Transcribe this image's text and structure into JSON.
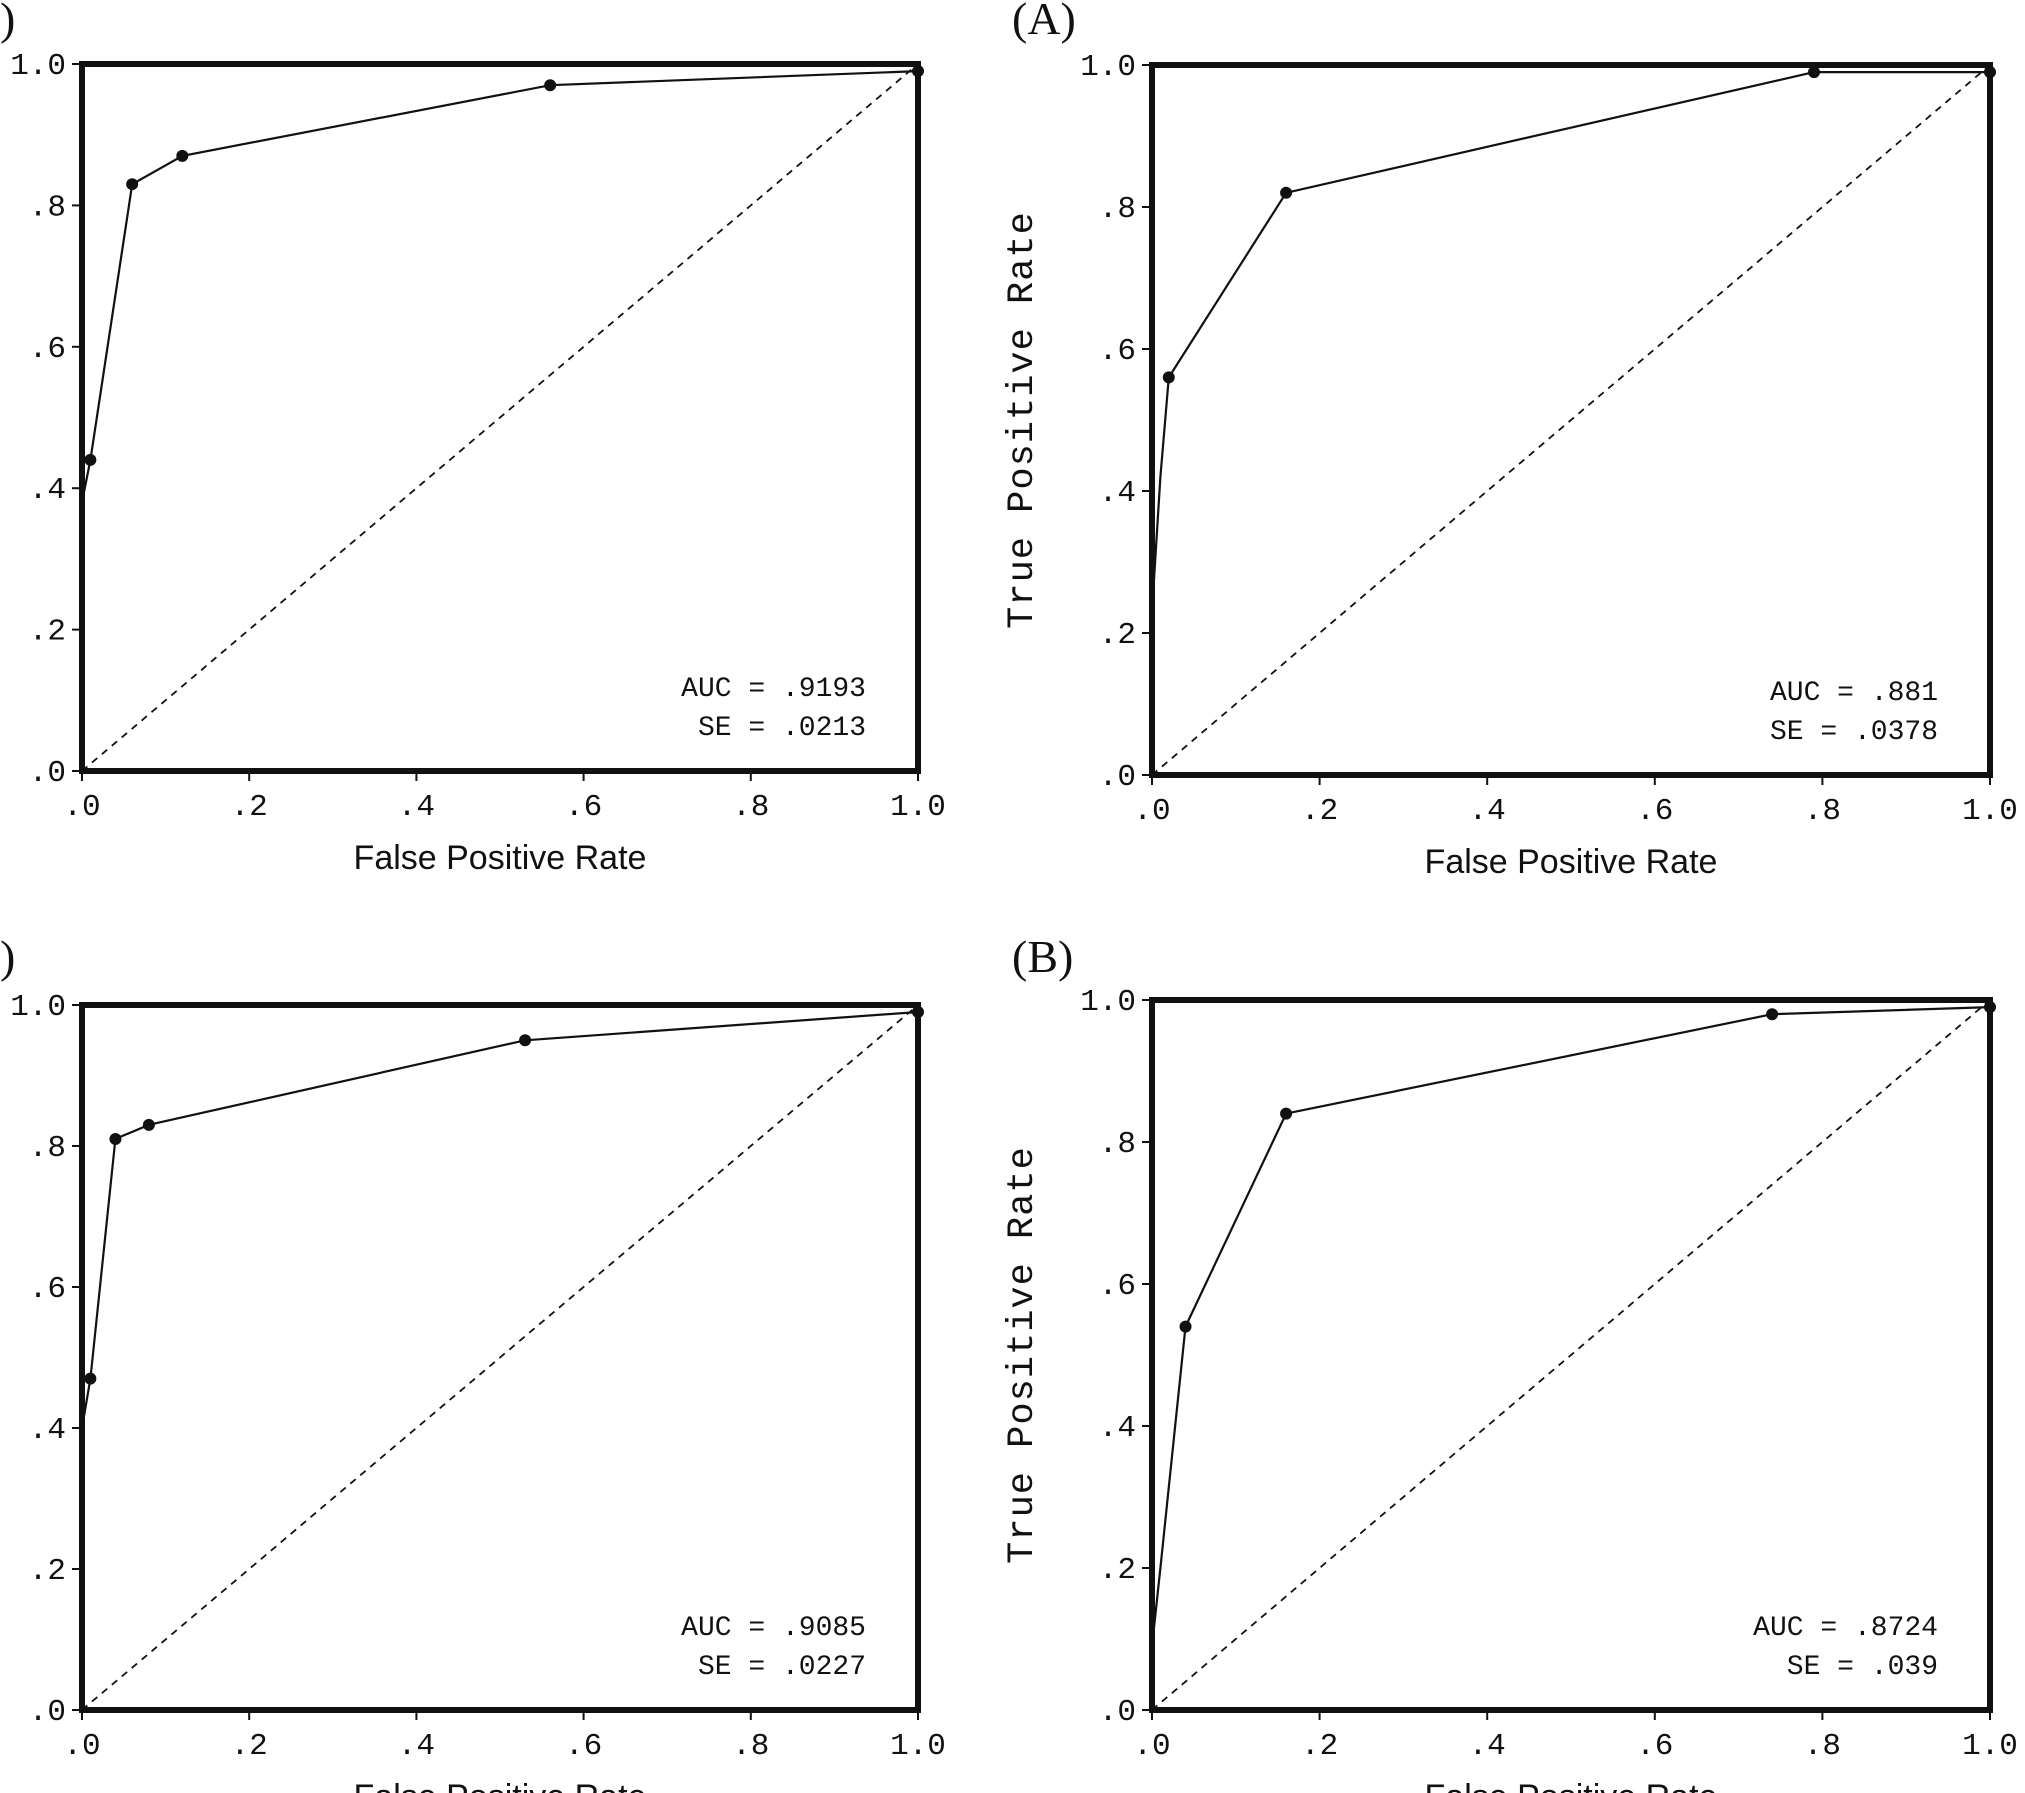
{
  "chart_data": [
    {
      "type": "line",
      "panel_label": ")",
      "xlabel": "False Positive Rate",
      "ylabel": "",
      "xlim": [
        0,
        1
      ],
      "ylim": [
        0,
        1
      ],
      "x_ticks": [
        ".0",
        ".2",
        ".4",
        ".6",
        ".8",
        "1.0"
      ],
      "y_ticks": [
        ".0",
        ".2",
        ".4",
        ".6",
        ".8",
        "1.0"
      ],
      "grid": false,
      "reference_line": "diagonal dashed",
      "series": [
        {
          "x": [
            0,
            0,
            0.01,
            0.06,
            0.12,
            0.56,
            1.0
          ],
          "y": [
            0.22,
            0.38,
            0.44,
            0.83,
            0.87,
            0.97,
            0.99
          ]
        }
      ],
      "markers": {
        "x": [
          0.01,
          0.06,
          0.12,
          0.56,
          1.0
        ],
        "y": [
          0.44,
          0.83,
          0.87,
          0.97,
          0.99
        ]
      },
      "annotation": {
        "auc": "AUC = .9193",
        "se": "SE = .0213"
      }
    },
    {
      "type": "line",
      "panel_label": "(A)",
      "xlabel": "False Positive Rate",
      "ylabel": "True Positive Rate",
      "xlim": [
        0,
        1
      ],
      "ylim": [
        0,
        1
      ],
      "x_ticks": [
        ".0",
        ".2",
        ".4",
        ".6",
        ".8",
        "1.0"
      ],
      "y_ticks": [
        ".0",
        ".2",
        ".4",
        ".6",
        ".8",
        "1.0"
      ],
      "grid": false,
      "reference_line": "diagonal dashed",
      "series": [
        {
          "x": [
            0,
            0,
            0.01,
            0.02,
            0.16,
            0.79,
            1.0
          ],
          "y": [
            0.14,
            0.23,
            0.42,
            0.56,
            0.82,
            0.99,
            0.99
          ]
        }
      ],
      "markers": {
        "x": [
          0.02,
          0.16,
          0.79,
          1.0
        ],
        "y": [
          0.56,
          0.82,
          0.99,
          0.99
        ]
      },
      "annotation": {
        "auc": "AUC = .881",
        "se": "SE = .0378"
      }
    },
    {
      "type": "line",
      "panel_label": ")",
      "xlabel": "False Positive Rate",
      "ylabel": "",
      "xlim": [
        0,
        1
      ],
      "ylim": [
        0,
        1
      ],
      "x_ticks": [
        ".0",
        ".2",
        ".4",
        ".6",
        ".8",
        "1.0"
      ],
      "y_ticks": [
        ".0",
        ".2",
        ".4",
        ".6",
        ".8",
        "1.0"
      ],
      "grid": false,
      "reference_line": "diagonal dashed",
      "series": [
        {
          "x": [
            0,
            0,
            0.01,
            0.04,
            0.08,
            0.53,
            1.0
          ],
          "y": [
            0.24,
            0.4,
            0.47,
            0.81,
            0.83,
            0.95,
            0.99
          ]
        }
      ],
      "markers": {
        "x": [
          0.01,
          0.04,
          0.08,
          0.53,
          1.0
        ],
        "y": [
          0.47,
          0.81,
          0.83,
          0.95,
          0.99
        ]
      },
      "annotation": {
        "auc": "AUC = .9085",
        "se": "SE = .0227"
      }
    },
    {
      "type": "line",
      "panel_label": "(B)",
      "xlabel": "False Positive Rate",
      "ylabel": "True Positive Rate",
      "xlim": [
        0,
        1
      ],
      "ylim": [
        0,
        1
      ],
      "x_ticks": [
        ".0",
        ".2",
        ".4",
        ".6",
        ".8",
        "1.0"
      ],
      "y_ticks": [
        ".0",
        ".2",
        ".4",
        ".6",
        ".8",
        "1.0"
      ],
      "grid": false,
      "reference_line": "diagonal dashed",
      "series": [
        {
          "x": [
            0,
            0,
            0.01,
            0.04,
            0.16,
            0.74,
            1.0
          ],
          "y": [
            0.05,
            0.09,
            0.2,
            0.54,
            0.84,
            0.98,
            0.99
          ]
        }
      ],
      "markers": {
        "x": [
          0.04,
          0.16,
          0.74,
          1.0
        ],
        "y": [
          0.54,
          0.84,
          0.98,
          0.99
        ]
      },
      "annotation": {
        "auc": "AUC = .8724",
        "se": "SE = .039"
      }
    }
  ]
}
